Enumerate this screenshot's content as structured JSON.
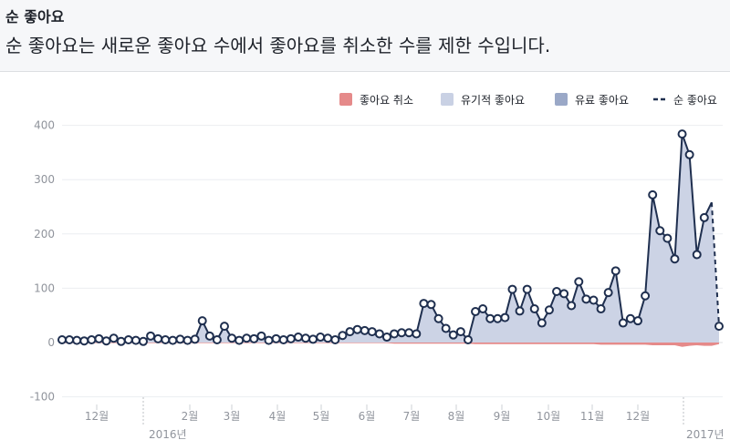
{
  "header": {
    "title": "순 좋아요",
    "subtitle": "순 좋아요는 새로운 좋아요 수에서 좋아요를 취소한 수를 제한 수입니다."
  },
  "legend": [
    {
      "label": "좋아요 취소",
      "color": "#e58a8a",
      "kind": "square"
    },
    {
      "label": "유기적 좋아요",
      "color": "#c9d1e4",
      "kind": "square"
    },
    {
      "label": "유료 좋아요",
      "color": "#9aa8c7",
      "kind": "square"
    },
    {
      "label": "순 좋아요",
      "color": "#1f2f4f",
      "kind": "line"
    }
  ],
  "chart_data": {
    "type": "area",
    "ylim": [
      -100,
      420
    ],
    "yticks": [
      -100,
      0,
      100,
      200,
      300,
      400
    ],
    "grid": true,
    "legend_position": "top-right",
    "x_month_ticks": [
      "12월",
      "2월",
      "3월",
      "4월",
      "5월",
      "6월",
      "7월",
      "8월",
      "9월",
      "10월",
      "11월",
      "12월"
    ],
    "x_year_ticks": [
      "2016년",
      "2017년"
    ],
    "series": [
      {
        "name": "순 좋아요",
        "values": [
          5,
          5,
          4,
          3,
          5,
          7,
          3,
          8,
          2,
          5,
          4,
          2,
          12,
          7,
          5,
          4,
          6,
          4,
          6,
          40,
          12,
          5,
          30,
          8,
          4,
          8,
          7,
          12,
          4,
          7,
          5,
          7,
          10,
          8,
          6,
          10,
          8,
          5,
          13,
          20,
          24,
          22,
          20,
          16,
          10,
          16,
          18,
          18,
          16,
          72,
          70,
          44,
          26,
          14,
          20,
          5,
          57,
          62,
          44,
          44,
          46,
          98,
          58,
          98,
          62,
          36,
          60,
          94,
          90,
          68,
          112,
          80,
          78,
          62,
          92,
          132,
          36,
          44,
          40,
          86,
          272,
          206,
          192,
          154,
          384,
          346,
          162,
          230,
          258,
          30
        ],
        "dashed_last_segment": true
      },
      {
        "name": "좋아요 취소",
        "values": [
          -1,
          -1,
          -1,
          -1,
          -1,
          -1,
          -1,
          -1,
          -1,
          -1,
          -1,
          -1,
          -1,
          -1,
          -1,
          -1,
          -1,
          -1,
          -1,
          -1,
          -1,
          -1,
          -1,
          -1,
          -1,
          -1,
          -1,
          -1,
          -1,
          -1,
          -1,
          -1,
          -1,
          -1,
          -1,
          -1,
          -1,
          -1,
          -1,
          -1,
          -1,
          -1,
          -1,
          -1,
          -1,
          -2,
          -2,
          -2,
          -2,
          -2,
          -2,
          -2,
          -2,
          -2,
          -2,
          -2,
          -3,
          -3,
          -3,
          -3,
          -3,
          -3,
          -3,
          -3,
          -3,
          -3,
          -3,
          -3,
          -3,
          -3,
          -3,
          -3,
          -3,
          -4,
          -4,
          -4,
          -4,
          -4,
          -4,
          -4,
          -5,
          -5,
          -5,
          -5,
          -8,
          -6,
          -5,
          -6,
          -6,
          -3
        ]
      }
    ]
  }
}
